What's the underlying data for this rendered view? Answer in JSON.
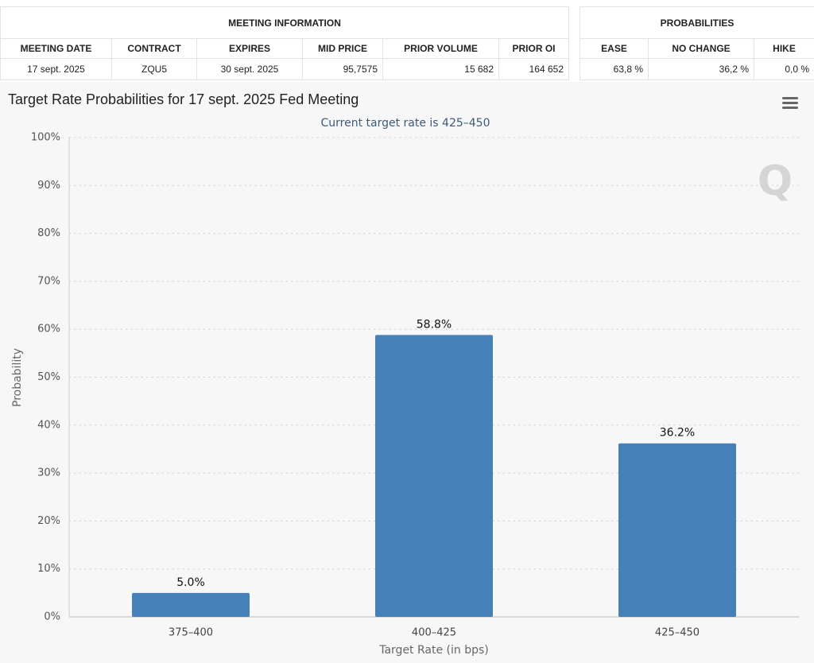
{
  "meeting_table": {
    "title": "MEETING INFORMATION",
    "headers": [
      "MEETING DATE",
      "CONTRACT",
      "EXPIRES",
      "MID PRICE",
      "PRIOR VOLUME",
      "PRIOR OI"
    ],
    "rows": [
      [
        "17 sept. 2025",
        "ZQU5",
        "30 sept. 2025",
        "95,7575",
        "15 682",
        "164 652"
      ]
    ]
  },
  "probabilities_table": {
    "title": "PROBABILITIES",
    "headers": [
      "EASE",
      "NO CHANGE",
      "HIKE"
    ],
    "rows": [
      [
        "63,8 %",
        "36,2 %",
        "0,0 %"
      ]
    ]
  },
  "chart_data": {
    "type": "bar",
    "title": "Target Rate Probabilities for 17 sept. 2025 Fed Meeting",
    "subtitle": "Current target rate is 425–450",
    "x_label": "Target Rate (in bps)",
    "y_label": "Probability",
    "categories": [
      "375–400",
      "400–425",
      "425–450"
    ],
    "values": [
      5.0,
      58.8,
      36.2
    ],
    "value_labels": [
      "5.0%",
      "58.8%",
      "36.2%"
    ],
    "color": "#4680b8",
    "ylim": [
      0,
      100
    ],
    "yticks": [
      {
        "value": 0,
        "label": "0%"
      },
      {
        "value": 10,
        "label": "10%"
      },
      {
        "value": 20,
        "label": "20%"
      },
      {
        "value": 30,
        "label": "30%"
      },
      {
        "value": 40,
        "label": "40%"
      },
      {
        "value": 50,
        "label": "50%"
      },
      {
        "value": 60,
        "label": "60%"
      },
      {
        "value": 70,
        "label": "70%"
      },
      {
        "value": 80,
        "label": "80%"
      },
      {
        "value": 90,
        "label": "90%"
      },
      {
        "value": 100,
        "label": "100%"
      }
    ],
    "grid": true
  }
}
